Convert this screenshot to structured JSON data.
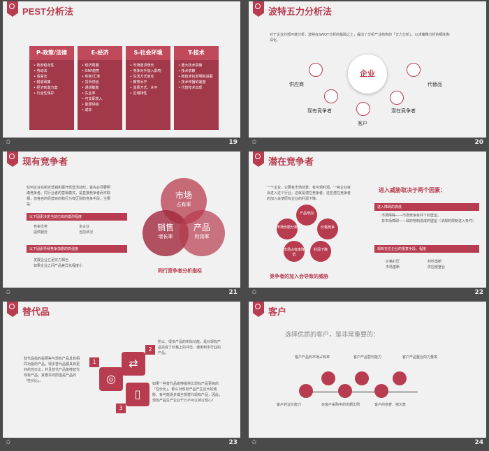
{
  "slides": [
    {
      "num": "19",
      "title": "PEST分析法",
      "cols": [
        {
          "head": "P-政策/法律",
          "items": [
            "政府稳定性",
            "劳动法",
            "贸易法",
            "税收政策",
            "经济刺激方案",
            "行业性保护"
          ]
        },
        {
          "head": "E-经济",
          "items": [
            "经济周期",
            "GNP趋势",
            "利率/汇率",
            "货币供给",
            "通货膨胀",
            "失业率",
            "可支配收入",
            "能源供给",
            "成本"
          ]
        },
        {
          "head": "S-社会环境",
          "items": [
            "市场需求增长",
            "竞争对手加入影响",
            "生活方式变化",
            "教育水平",
            "消费方式、水平",
            "区域特性"
          ]
        },
        {
          "head": "T-技术",
          "items": [
            "重大技术突破",
            "技术依赖",
            "新技术的发明和进展",
            "技术传播的速度",
            "代替技术出现"
          ]
        }
      ]
    },
    {
      "num": "20",
      "title": "波特五力分析法",
      "intro": "对于企业外部环境分析，波特在SWOT分析的基础之上，提出了分析产业结构的「五力分析」，以求策略分析的细化和深化。",
      "center": "企业",
      "nodes": [
        "供应商",
        "代替品",
        "现有竞争者",
        "潜在竞争者",
        "客户"
      ]
    },
    {
      "num": "21",
      "title": "现有竞争者",
      "desc": "任何企业在制定营销和展开经营活动时，首先必须要明确竞争者。同行业者的营销模式，是直接竞争者而可取相，但各自的经营目的和行为有区别的竞争手段，主要是：",
      "bar1": "以下因素决定当前已有的激烈程度",
      "list1": [
        "竞争优势",
        "本企业",
        "提供服务",
        "当前状况"
      ],
      "bar2": "以下因素导致竞争加剧的高强度",
      "list2": [
        "发展企业立足实力相当",
        "如果企业之间产品差异化程度小"
      ],
      "v1": "市场",
      "v1s": "占有率",
      "v2": "销售",
      "v2s": "增长率",
      "v3": "产品",
      "v3s": "利润率",
      "caption": "同行竞争者分析指标"
    },
    {
      "num": "22",
      "title": "潜在竞争者",
      "desc": "一个企业，只要有市场前景，有可观利润，一些企业就会进入这个行业，这就是潜在竞争者。这些潜在竞争者的加入会使原有企业的利润下降。",
      "flower": [
        "产品增加",
        "价格竞争",
        "利润下降",
        "市场占有率降低",
        "市场份额分离"
      ],
      "caption": "竞争者的加入会导致的威胁",
      "right_title": "进入威胁取决于两个因素：",
      "bar1": "进入障碍的高低",
      "items1": [
        "市场障碍——市场竞争条件下的壁垒。",
        "非市场障碍——政府管制造成的壁垒（法规的限制进入条件）"
      ],
      "bar2": "现有在位企业的报复手段、程度",
      "list2": [
        "价格打压",
        "材料垄断",
        "市场垄断",
        "供应链整合"
      ]
    },
    {
      "num": "23",
      "title": "替代品",
      "left": "替代品指的是那些与现有产品具有相同功能的产品，很多替代品都具有更好的性价比，并且替代产品能够替代现有产品，其根本的原因是产品的「性价比」。",
      "n1": "1",
      "n2": "2",
      "n3": "3",
      "r1": "所以，很多产品的实际功能，是对现有产品造成了价格上的冲击，通用到本行业的产品。",
      "r2": "如果一些替代品能够提供比现有产品更高的「性价比」，那么对现有产品产生巨大的威胁，有可能逐步或全部替代现有产品，因此，现有产品生产企业千万不可以掉以轻心！"
    },
    {
      "num": "24",
      "title": "客户",
      "intro": "选择优质的客户，是非常重要的：",
      "top": [
        "客户产品的市场占有率",
        "客户产品营利能力",
        "客户产品整合的力量等"
      ],
      "bottom": [
        "客户的议价能力",
        "在客户采购中的份额比例",
        "客户的信誉、拖欠款"
      ]
    }
  ],
  "colors": {
    "accent": "#b83c4f",
    "dark": "#a2394a"
  }
}
